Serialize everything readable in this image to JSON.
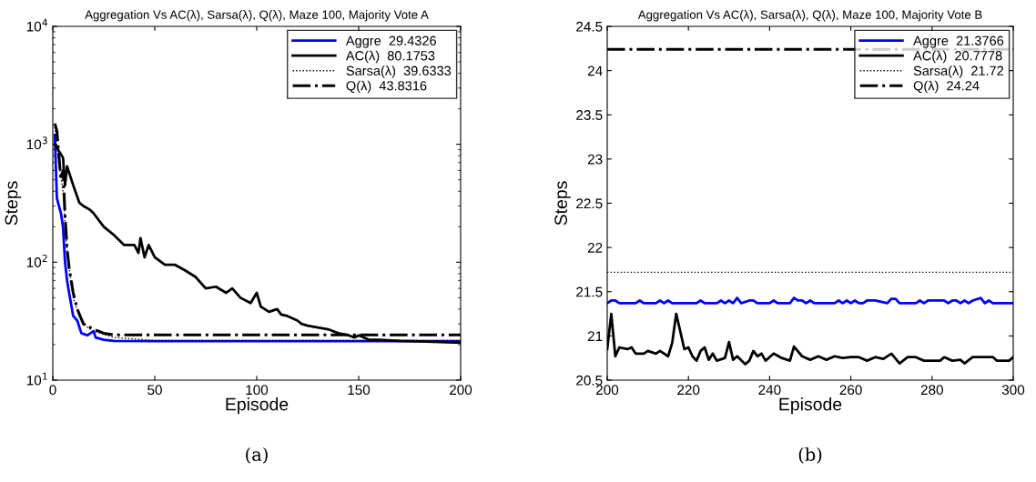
{
  "chart_data": [
    {
      "type": "line",
      "title": "Aggregation Vs AC(λ), Sarsa(λ), Q(λ), Maze 100, Majority Vote A",
      "xlabel": "Episode",
      "ylabel": "Steps",
      "log": "y",
      "xlim": [
        0,
        200
      ],
      "xticks": [
        0,
        50,
        100,
        150,
        200
      ],
      "ylim": [
        10,
        10000
      ],
      "yticks": [
        {
          "value": 10,
          "label": "10$^{1}$"
        },
        {
          "value": 100,
          "label": "10$^{2}$"
        },
        {
          "value": 1000,
          "label": "10$^{3}$"
        },
        {
          "value": 10000,
          "label": "10$^{4}$"
        }
      ],
      "legend": "top right",
      "grid": false,
      "annotations": [
        "(a)"
      ],
      "series": [
        {
          "name": "Aggre  29.4326",
          "color": "#0000ff",
          "line_style": "solid",
          "x": [
            1,
            2,
            3,
            4,
            5,
            6,
            7,
            8,
            10,
            12,
            14,
            17,
            20,
            21,
            25,
            30,
            50,
            100,
            150,
            200
          ],
          "values": [
            1200,
            350,
            300,
            260,
            200,
            100,
            70,
            55,
            35,
            32,
            25,
            24,
            26,
            23,
            22,
            21.5,
            21.4,
            21.4,
            21.4,
            21.4
          ]
        },
        {
          "name": "AC(λ)  80.1753",
          "color": "#000000",
          "line_style": "solid",
          "x": [
            1,
            5,
            6,
            7,
            10,
            13,
            15,
            18,
            20,
            25,
            30,
            35,
            40,
            42,
            43,
            45,
            47,
            50,
            55,
            60,
            65,
            70,
            75,
            80,
            85,
            88,
            92,
            97,
            100,
            102,
            106,
            110,
            112,
            115,
            120,
            122,
            125,
            130,
            135,
            140,
            145,
            148,
            150,
            155,
            160,
            170,
            180,
            190,
            200
          ],
          "values": [
            1000,
            770,
            450,
            650,
            450,
            320,
            300,
            280,
            260,
            200,
            170,
            140,
            140,
            120,
            160,
            110,
            140,
            110,
            95,
            95,
            85,
            75,
            60,
            62,
            55,
            60,
            50,
            45,
            55,
            42,
            38,
            40,
            36,
            35,
            32,
            30,
            29,
            28,
            27,
            25,
            24,
            23,
            24,
            22,
            22,
            21.5,
            21.3,
            21,
            20.8
          ]
        },
        {
          "name": "Sarsa(λ)  39.6333",
          "color": "#000000",
          "line_style": "dotted",
          "x": [
            1,
            3,
            5,
            7,
            10,
            13,
            17,
            20,
            30,
            50,
            100,
            150,
            200
          ],
          "values": [
            1400,
            700,
            400,
            120,
            50,
            35,
            28,
            26,
            23,
            21.7,
            21.7,
            21.7,
            21.7
          ]
        },
        {
          "name": "Q(λ)  43.8316",
          "color": "#000000",
          "line_style": "dashdot",
          "x": [
            1,
            2,
            3,
            4,
            5,
            6,
            7,
            8,
            10,
            12,
            15,
            20,
            25,
            30,
            50,
            100,
            150,
            200
          ],
          "values": [
            1500,
            1300,
            800,
            500,
            600,
            250,
            130,
            90,
            55,
            40,
            30,
            27,
            25,
            24.2,
            24.2,
            24.2,
            24.2,
            24.2
          ]
        }
      ]
    },
    {
      "type": "line",
      "title": "Aggregation Vs AC(λ), Sarsa(λ), Q(λ), Maze 100, Majority Vote B",
      "xlabel": "Episode",
      "ylabel": "Steps",
      "xlim": [
        200,
        300
      ],
      "xticks": [
        200,
        220,
        240,
        260,
        280,
        300
      ],
      "ylim": [
        20.5,
        24.5
      ],
      "yticks": [
        20.5,
        21,
        21.5,
        22,
        22.5,
        23,
        23.5,
        24,
        24.5
      ],
      "legend": "top right",
      "grid": false,
      "annotations": [
        "(b)"
      ],
      "series": [
        {
          "name": "Aggre  21.3766",
          "color": "#0000ff",
          "line_style": "solid",
          "x": [
            200,
            201,
            202,
            203,
            207,
            208,
            209,
            212,
            213,
            214,
            215,
            216,
            222,
            223,
            224,
            227,
            228,
            229,
            230,
            231,
            232,
            233,
            235,
            236,
            237,
            240,
            241,
            242,
            245,
            246,
            247,
            248,
            249,
            250,
            251,
            256,
            257,
            258,
            259,
            260,
            261,
            262,
            263,
            264,
            265,
            266,
            269,
            270,
            271,
            272,
            276,
            277,
            278,
            279,
            283,
            284,
            285,
            286,
            287,
            288,
            289,
            290,
            292,
            293,
            294,
            295,
            296,
            297,
            298,
            299,
            300
          ],
          "values": [
            21.37,
            21.4,
            21.4,
            21.37,
            21.37,
            21.4,
            21.37,
            21.37,
            21.4,
            21.37,
            21.4,
            21.37,
            21.37,
            21.4,
            21.37,
            21.37,
            21.4,
            21.37,
            21.4,
            21.37,
            21.43,
            21.37,
            21.4,
            21.4,
            21.37,
            21.37,
            21.4,
            21.37,
            21.37,
            21.43,
            21.4,
            21.4,
            21.37,
            21.4,
            21.37,
            21.37,
            21.4,
            21.37,
            21.4,
            21.37,
            21.4,
            21.37,
            21.37,
            21.4,
            21.4,
            21.4,
            21.37,
            21.42,
            21.42,
            21.37,
            21.37,
            21.4,
            21.37,
            21.4,
            21.4,
            21.37,
            21.4,
            21.4,
            21.37,
            21.4,
            21.37,
            21.4,
            21.43,
            21.37,
            21.4,
            21.37,
            21.37,
            21.37,
            21.37,
            21.37,
            21.37
          ]
        },
        {
          "name": "AC(λ)  20.7778",
          "color": "#000000",
          "line_style": "solid",
          "x": [
            200,
            201,
            202,
            203,
            205,
            206,
            207,
            209,
            210,
            212,
            213,
            215,
            216,
            217,
            219,
            220,
            221,
            222,
            223,
            224,
            225,
            226,
            227,
            229,
            230,
            231,
            232,
            234,
            235,
            236,
            237,
            238,
            239,
            241,
            243,
            245,
            246,
            248,
            250,
            252,
            254,
            256,
            258,
            260,
            262,
            264,
            266,
            268,
            270,
            272,
            274,
            276,
            278,
            280,
            282,
            283,
            285,
            287,
            288,
            290,
            292,
            295,
            296,
            299,
            300
          ],
          "values": [
            20.85,
            21.25,
            20.77,
            20.87,
            20.85,
            20.87,
            20.8,
            20.8,
            20.83,
            20.8,
            20.83,
            20.77,
            20.92,
            21.25,
            20.85,
            20.87,
            20.77,
            20.72,
            20.83,
            20.87,
            20.73,
            20.8,
            20.72,
            20.75,
            20.93,
            20.73,
            20.77,
            20.68,
            20.72,
            20.83,
            20.77,
            20.8,
            20.72,
            20.8,
            20.75,
            20.72,
            20.88,
            20.77,
            20.73,
            20.77,
            20.73,
            20.77,
            20.75,
            20.76,
            20.76,
            20.72,
            20.76,
            20.74,
            20.8,
            20.69,
            20.76,
            20.76,
            20.72,
            20.72,
            20.72,
            20.76,
            20.72,
            20.73,
            20.69,
            20.76,
            20.76,
            20.76,
            20.72,
            20.72,
            20.76
          ]
        },
        {
          "name": "Sarsa(λ)  21.72",
          "color": "#000000",
          "line_style": "dotted",
          "x": [
            200,
            300
          ],
          "values": [
            21.72,
            21.72
          ]
        },
        {
          "name": "Q(λ)  24.24",
          "color": "#000000",
          "line_style": "dashdot",
          "x": [
            200,
            300
          ],
          "values": [
            24.24,
            24.24
          ]
        }
      ]
    }
  ]
}
